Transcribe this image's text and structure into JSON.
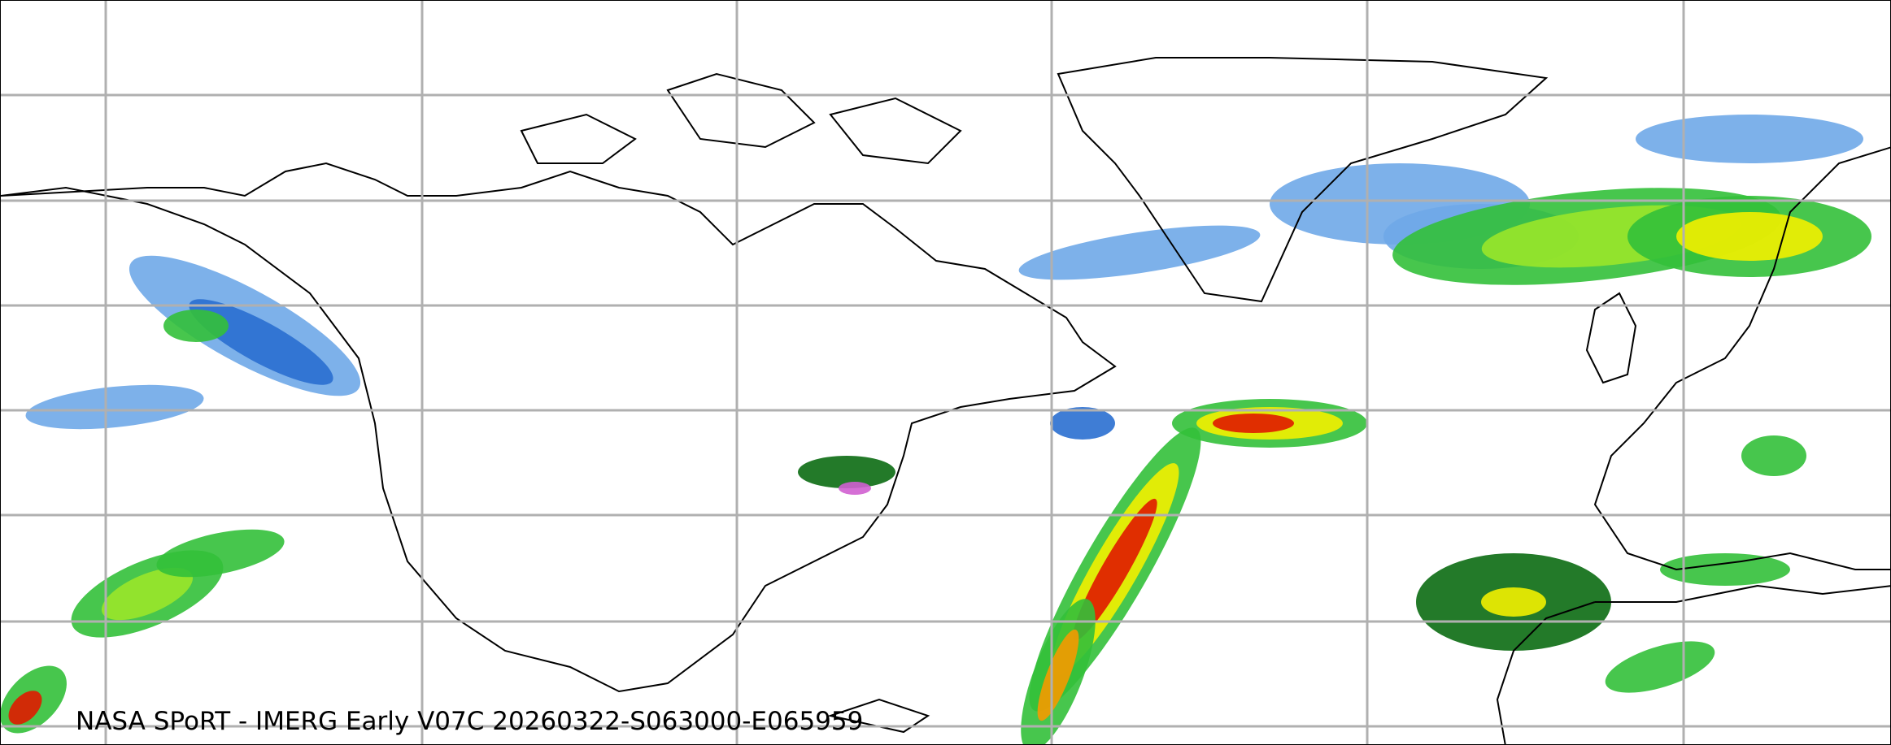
{
  "caption": "NASA SPoRT - IMERG Early V07C 20260322-S063000-E065959",
  "map": {
    "projection": "equirectangular",
    "gridline_spacing_deg": {
      "longitude": 30,
      "latitude": 10
    },
    "gridline_color": "#b0b0b0",
    "coastline_color": "#000000",
    "precip_colors": [
      "#cfe3f7",
      "#6fa8e8",
      "#2a6fd0",
      "#0b6b12",
      "#33c03a",
      "#9ae62a",
      "#f2f000",
      "#f59a00",
      "#e01a00",
      "#d05fd0"
    ]
  }
}
